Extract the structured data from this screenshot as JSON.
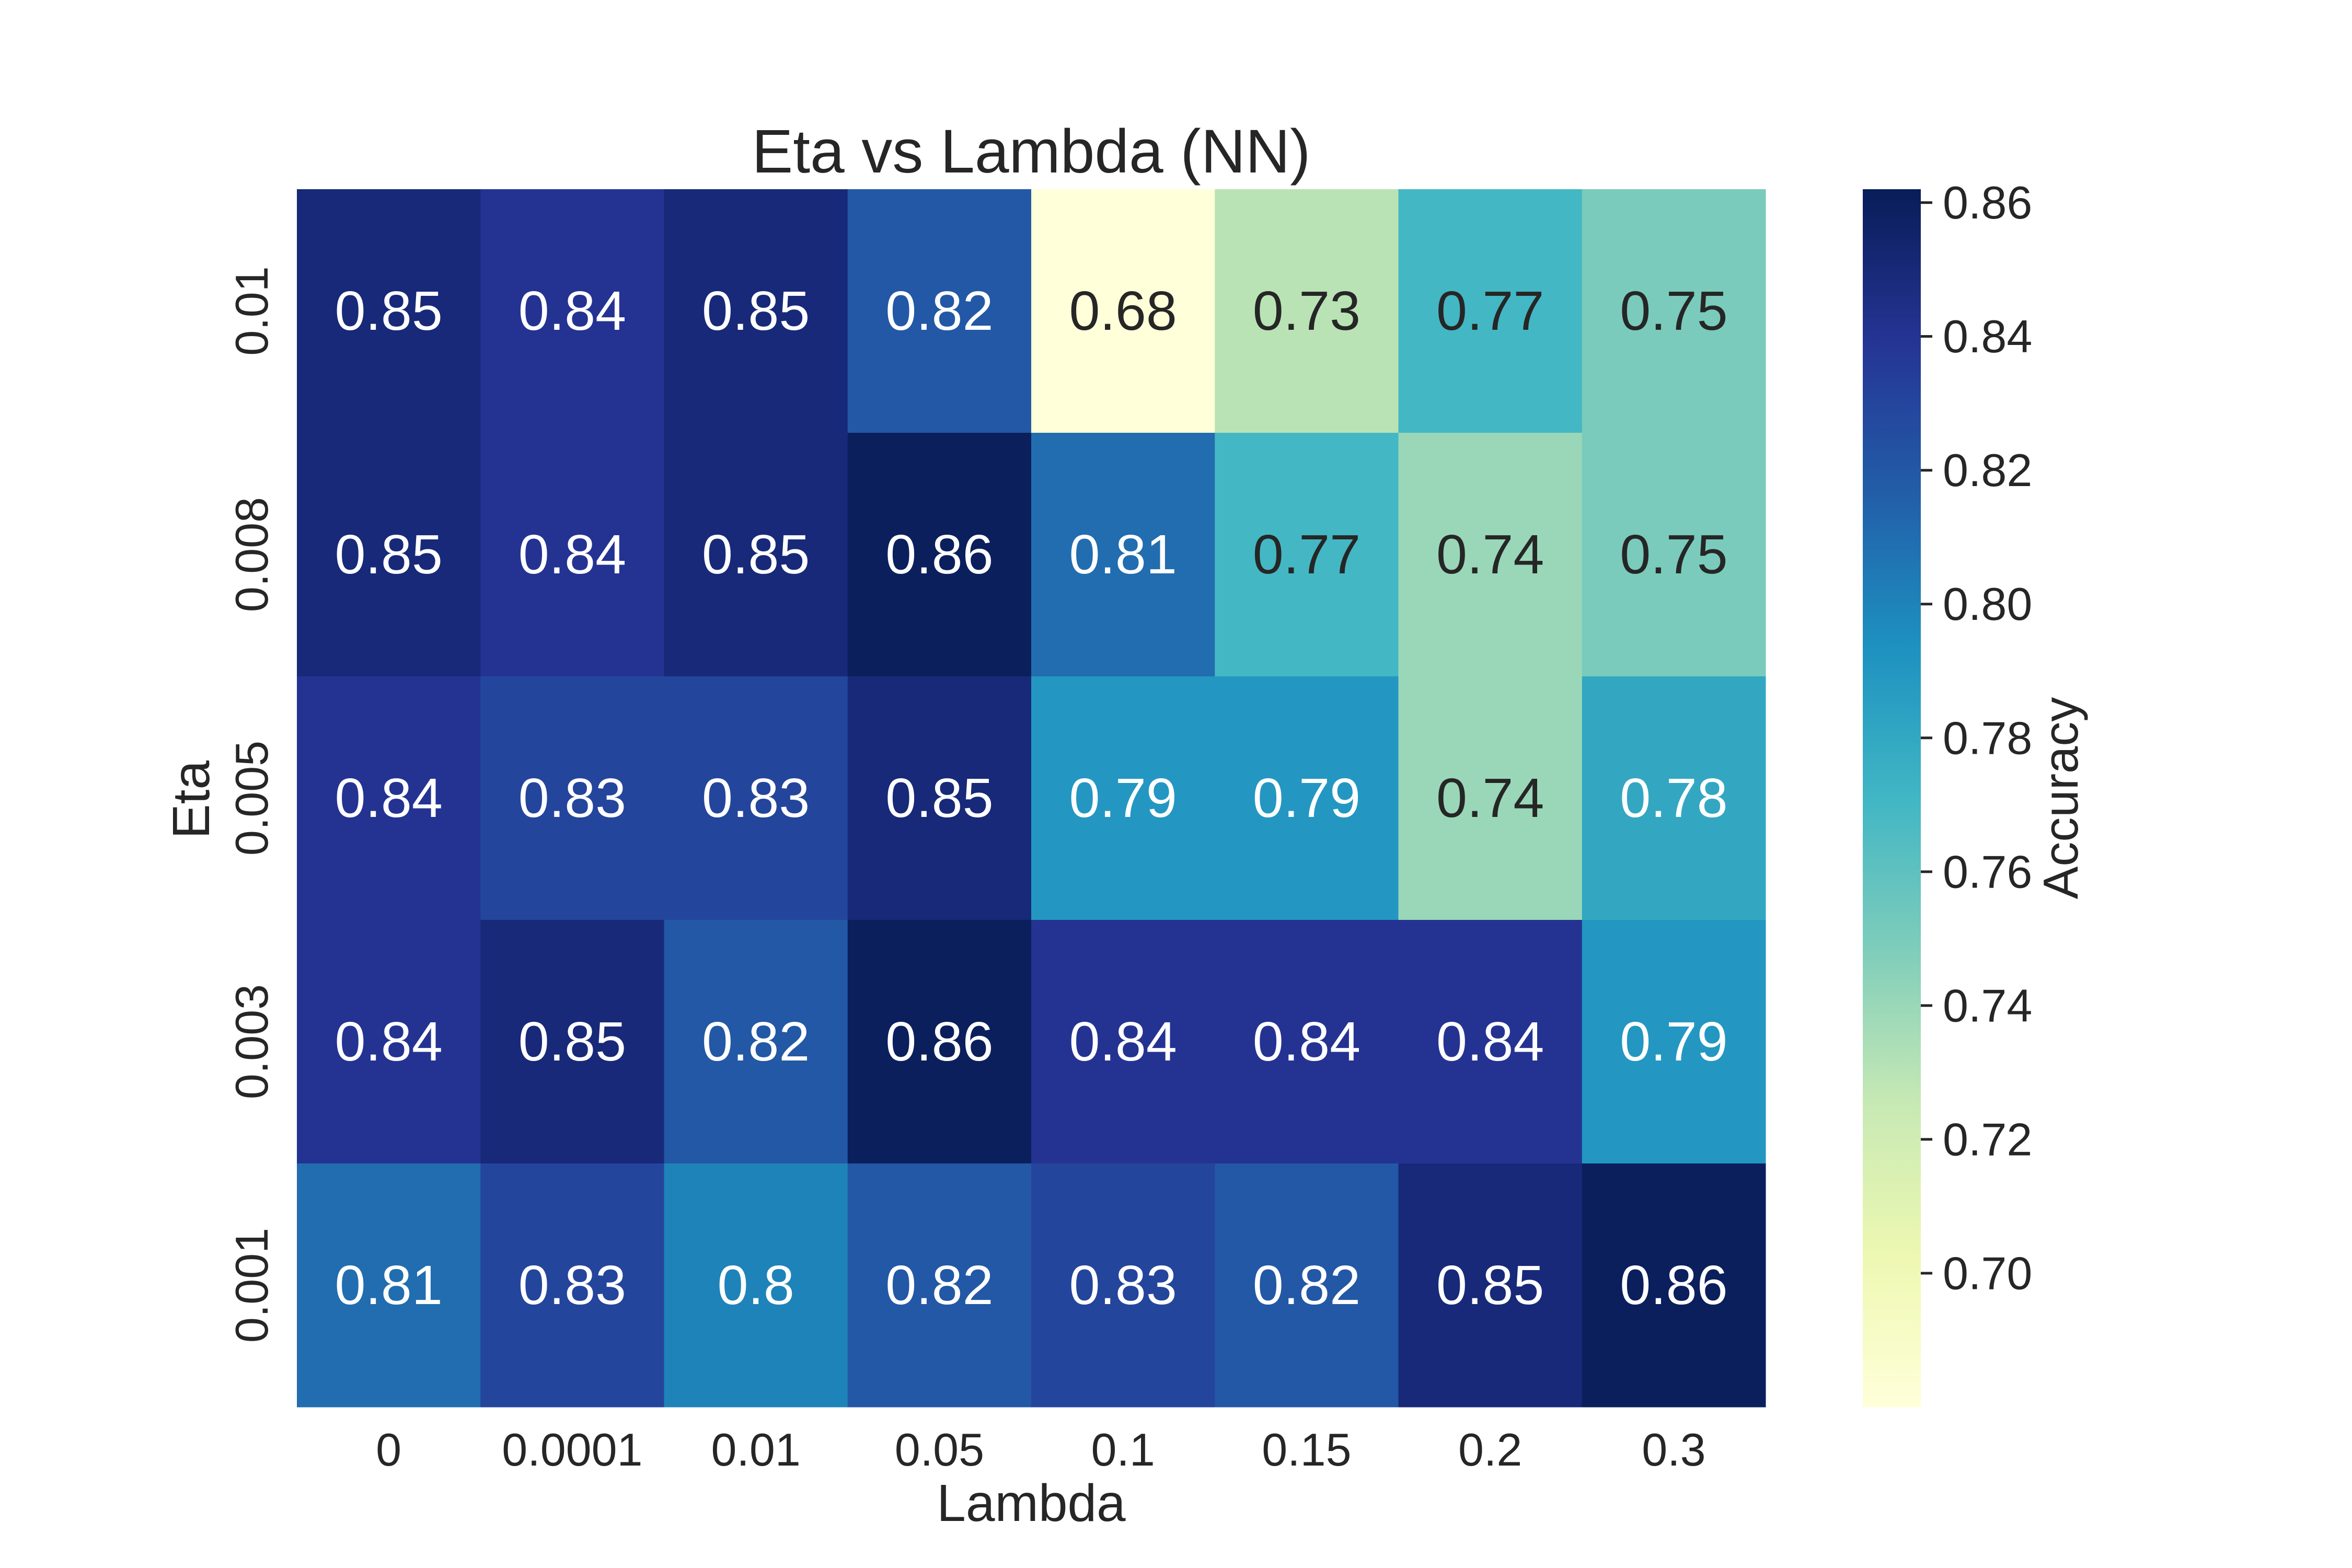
{
  "chart_data": {
    "type": "heatmap",
    "title": "Eta vs Lambda (NN)",
    "xlabel": "Lambda",
    "ylabel": "Eta",
    "x_categories": [
      "0",
      "0.0001",
      "0.01",
      "0.05",
      "0.1",
      "0.15",
      "0.2",
      "0.3"
    ],
    "y_categories": [
      "0.01",
      "0.008",
      "0.005",
      "0.003",
      "0.001"
    ],
    "values": [
      [
        0.85,
        0.84,
        0.85,
        0.82,
        0.68,
        0.73,
        0.77,
        0.75
      ],
      [
        0.85,
        0.84,
        0.85,
        0.86,
        0.81,
        0.77,
        0.74,
        0.75
      ],
      [
        0.84,
        0.83,
        0.83,
        0.85,
        0.79,
        0.79,
        0.74,
        0.78
      ],
      [
        0.84,
        0.85,
        0.82,
        0.86,
        0.84,
        0.84,
        0.84,
        0.79
      ],
      [
        0.81,
        0.83,
        0.8,
        0.82,
        0.83,
        0.82,
        0.85,
        0.86
      ]
    ],
    "value_labels": [
      [
        "0.85",
        "0.84",
        "0.85",
        "0.82",
        "0.68",
        "0.73",
        "0.77",
        "0.75"
      ],
      [
        "0.85",
        "0.84",
        "0.85",
        "0.86",
        "0.81",
        "0.77",
        "0.74",
        "0.75"
      ],
      [
        "0.84",
        "0.83",
        "0.83",
        "0.85",
        "0.79",
        "0.79",
        "0.74",
        "0.78"
      ],
      [
        "0.84",
        "0.85",
        "0.82",
        "0.86",
        "0.84",
        "0.84",
        "0.84",
        "0.79"
      ],
      [
        "0.81",
        "0.83",
        "0.8",
        "0.82",
        "0.83",
        "0.82",
        "0.85",
        "0.86"
      ]
    ],
    "colormap": "YlGnBu",
    "colorbar": {
      "label": "Accuracy",
      "vmin": 0.68,
      "vmax": 0.862,
      "ticks": [
        0.7,
        0.72,
        0.74,
        0.76,
        0.78,
        0.8,
        0.82,
        0.84,
        0.86
      ],
      "tick_labels": [
        "0.70",
        "0.72",
        "0.74",
        "0.76",
        "0.78",
        "0.80",
        "0.82",
        "0.84",
        "0.86"
      ]
    },
    "grid": false,
    "colors": {
      "text_dark": "#262626",
      "text_light": "#ffffff"
    },
    "colormap_stops": [
      "#ffffd9",
      "#edf8b1",
      "#c7e9b4",
      "#7fcdbb",
      "#41b6c4",
      "#1d91c0",
      "#225ea8",
      "#253494",
      "#081d58"
    ]
  }
}
